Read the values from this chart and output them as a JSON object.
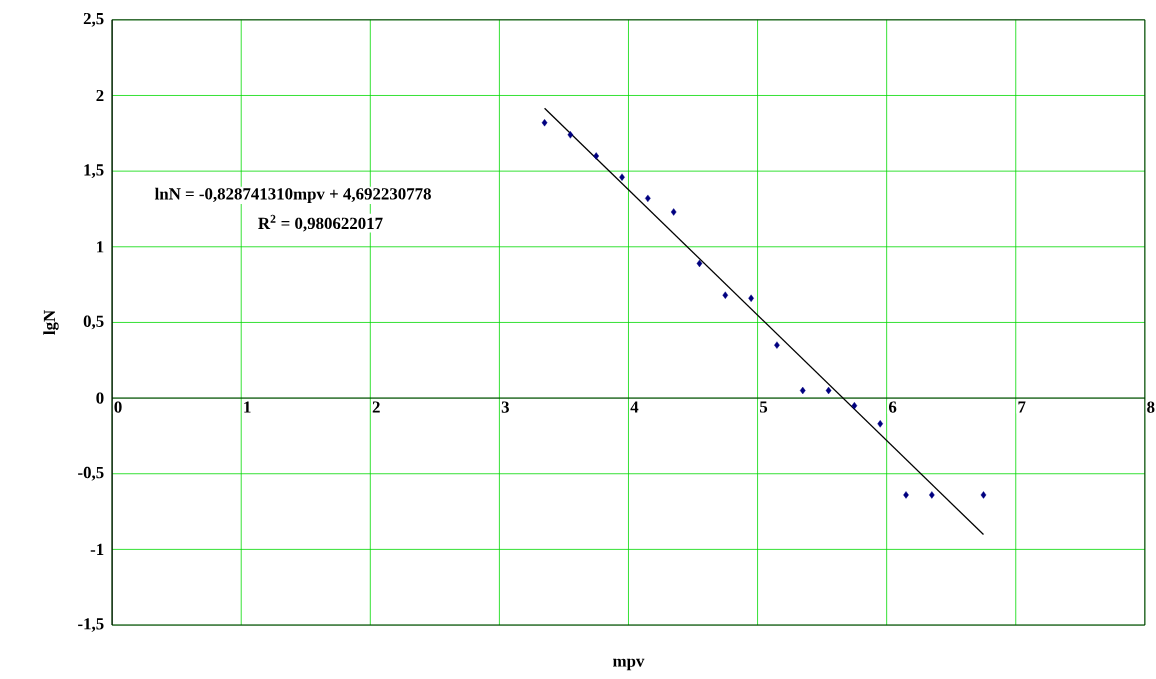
{
  "chart_data": {
    "type": "scatter",
    "xlabel": "mpv",
    "ylabel": "lgN",
    "annotations": [
      "lnN = -0,828741310mpv + 4,692230778",
      "R$^{2}$ = 0,980622017"
    ],
    "xlim": [
      0,
      8
    ],
    "ylim": [
      -1.5,
      2.5
    ],
    "xticks": [
      0,
      1,
      2,
      3,
      4,
      5,
      6,
      7,
      8
    ],
    "yticks": [
      {
        "value": -1.5,
        "label": "-1,5"
      },
      {
        "value": -1,
        "label": "-1"
      },
      {
        "value": -0.5,
        "label": "-0,5"
      },
      {
        "value": 0,
        "label": "0"
      },
      {
        "value": 0.5,
        "label": "0,5"
      },
      {
        "value": 1,
        "label": "1"
      },
      {
        "value": 1.5,
        "label": "1,5"
      },
      {
        "value": 2,
        "label": "2"
      },
      {
        "value": 2.5,
        "label": "2,5"
      }
    ],
    "grid": true,
    "series": [
      {
        "color": "#000080",
        "marker": "diamond",
        "x": [
          3.35,
          3.55,
          3.75,
          3.95,
          4.15,
          4.35,
          4.55,
          4.75,
          4.95,
          5.15,
          5.35,
          5.55,
          5.75,
          5.95,
          6.15,
          6.35,
          6.75
        ],
        "values": [
          1.82,
          1.74,
          1.6,
          1.46,
          1.32,
          1.23,
          0.89,
          0.68,
          0.66,
          0.35,
          0.05,
          0.05,
          -0.05,
          -0.17,
          -0.64,
          -0.64,
          -0.64
        ]
      },
      {
        "type": "line",
        "color": "#000000",
        "marker": "none",
        "line_style": "solid",
        "x": [
          3.35,
          6.75
        ],
        "values": [
          1.916,
          -0.902
        ]
      }
    ]
  }
}
